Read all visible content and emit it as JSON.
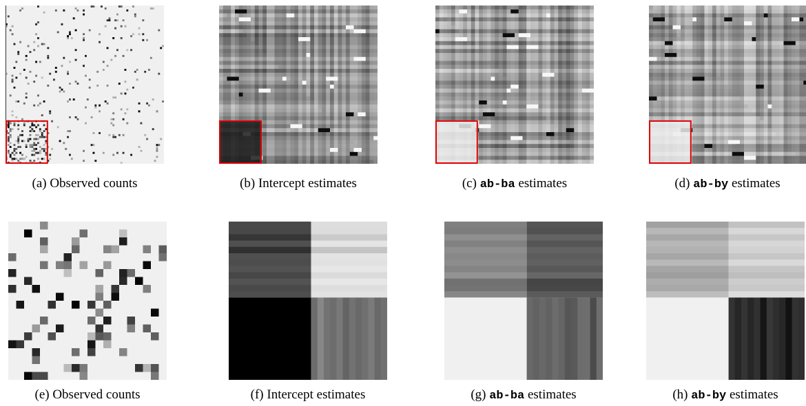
{
  "panels": [
    {
      "label": "(a)",
      "text": "Observed counts"
    },
    {
      "label": "(b)",
      "text": "Intercept estimates"
    },
    {
      "label": "(c)",
      "code": "ab-ba",
      "text": "estimates"
    },
    {
      "label": "(d)",
      "code": "ab-by",
      "text": "estimates"
    },
    {
      "label": "(e)",
      "text": "Observed counts"
    },
    {
      "label": "(f)",
      "text": "Intercept estimates"
    },
    {
      "label": "(g)",
      "code": "ab-ba",
      "text": "estimates"
    },
    {
      "label": "(h)",
      "code": "ab-by",
      "text": "estimates"
    }
  ]
}
